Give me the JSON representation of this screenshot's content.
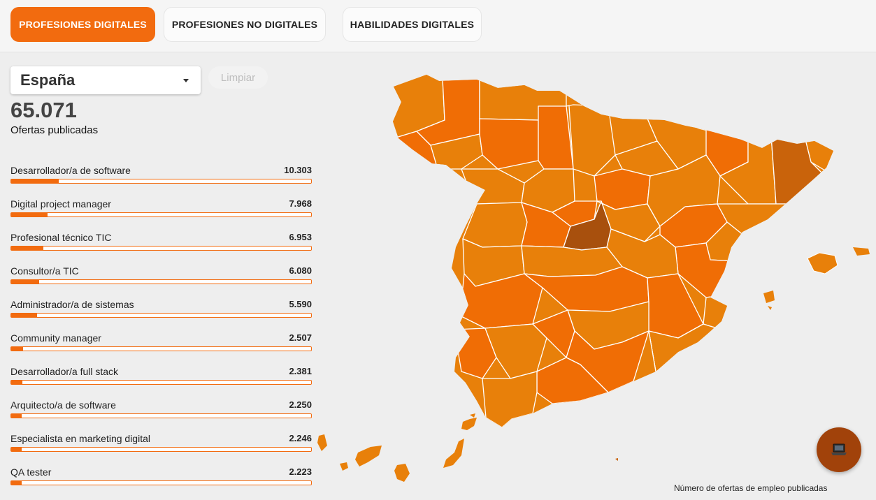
{
  "tabs": [
    {
      "label": "PROFESIONES DIGITALES",
      "active": true
    },
    {
      "label": "PROFESIONES NO DIGITALES",
      "active": false
    },
    {
      "label": "HABILIDADES DIGITALES",
      "active": false
    }
  ],
  "filter": {
    "region": "España",
    "clear_label": "Limpiar"
  },
  "summary": {
    "total": "65.071",
    "label": "Ofertas publicadas"
  },
  "professions": [
    {
      "name": "Desarrollador/a de software",
      "value": "10.303",
      "share": 0.158
    },
    {
      "name": "Digital project manager",
      "value": "7.968",
      "share": 0.122
    },
    {
      "name": "Profesional técnico TIC",
      "value": "6.953",
      "share": 0.107
    },
    {
      "name": "Consultor/a TIC",
      "value": "6.080",
      "share": 0.093
    },
    {
      "name": "Administrador/a de sistemas",
      "value": "5.590",
      "share": 0.086
    },
    {
      "name": "Community manager",
      "value": "2.507",
      "share": 0.039
    },
    {
      "name": "Desarrollador/a full stack",
      "value": "2.381",
      "share": 0.037
    },
    {
      "name": "Arquitecto/a de software",
      "value": "2.250",
      "share": 0.035
    },
    {
      "name": "Especialista en marketing digital",
      "value": "2.246",
      "share": 0.035
    },
    {
      "name": "QA tester",
      "value": "2.223",
      "share": 0.034
    }
  ],
  "colors": {
    "accent": "#f26b0f",
    "map_base": "#e8800a",
    "map_medium": "#f06d05",
    "map_high": "#c9630b",
    "map_top": "#a8500d",
    "fab": "#a1420a"
  },
  "fab": {
    "icon": "laptop-icon"
  },
  "legend": {
    "caption": "Número de ofertas de empleo publicadas"
  }
}
